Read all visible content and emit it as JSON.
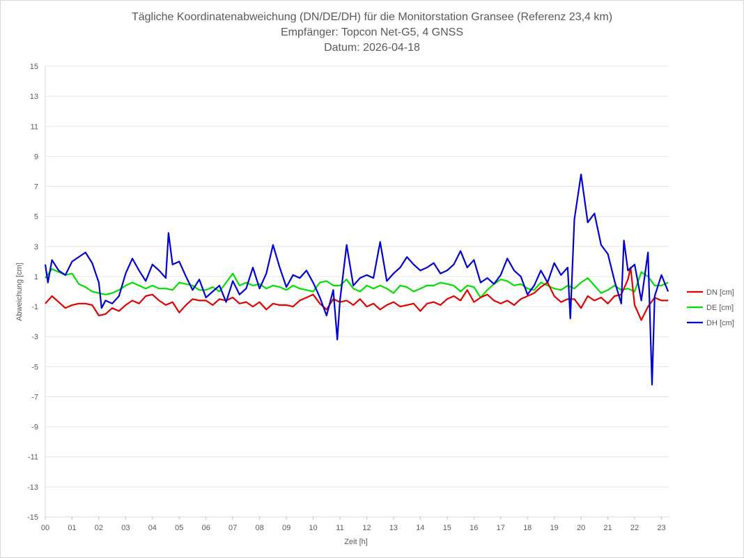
{
  "chart_data": {
    "type": "line",
    "title_lines": [
      "Tägliche Koordinatenabweichung (DN/DE/DH) für die Monitorstation Gransee (Referenz 23,4 km)",
      "Empfänger: Topcon Net-G5, 4 GNSS",
      "Datum: 2026-04-18"
    ],
    "xlabel": "Zeit [h]",
    "ylabel": "Abweichung [cm]",
    "xlim": [
      0,
      23.3
    ],
    "ylim": [
      -15,
      15
    ],
    "x_ticks": [
      "00",
      "01",
      "02",
      "03",
      "04",
      "05",
      "06",
      "07",
      "08",
      "09",
      "10",
      "11",
      "12",
      "13",
      "14",
      "15",
      "16",
      "17",
      "18",
      "19",
      "20",
      "21",
      "22",
      "23"
    ],
    "y_ticks": [
      15,
      13,
      11,
      9,
      7,
      5,
      3,
      1,
      -1,
      -3,
      -5,
      -7,
      -9,
      -11,
      -13,
      -15
    ],
    "legend_position": "right",
    "series": [
      {
        "name": "DN [cm]",
        "color": "#e00000",
        "points": [
          [
            0.0,
            -0.8
          ],
          [
            0.25,
            -0.3
          ],
          [
            0.5,
            -0.7
          ],
          [
            0.75,
            -1.1
          ],
          [
            1.0,
            -0.9
          ],
          [
            1.25,
            -0.8
          ],
          [
            1.5,
            -0.8
          ],
          [
            1.75,
            -0.9
          ],
          [
            2.0,
            -1.6
          ],
          [
            2.25,
            -1.5
          ],
          [
            2.5,
            -1.1
          ],
          [
            2.75,
            -1.3
          ],
          [
            3.0,
            -0.9
          ],
          [
            3.25,
            -0.6
          ],
          [
            3.5,
            -0.8
          ],
          [
            3.75,
            -0.3
          ],
          [
            4.0,
            -0.2
          ],
          [
            4.25,
            -0.6
          ],
          [
            4.5,
            -0.9
          ],
          [
            4.75,
            -0.7
          ],
          [
            5.0,
            -1.4
          ],
          [
            5.25,
            -0.9
          ],
          [
            5.5,
            -0.5
          ],
          [
            5.75,
            -0.6
          ],
          [
            6.0,
            -0.6
          ],
          [
            6.25,
            -0.9
          ],
          [
            6.5,
            -0.5
          ],
          [
            6.75,
            -0.6
          ],
          [
            7.0,
            -0.4
          ],
          [
            7.25,
            -0.8
          ],
          [
            7.5,
            -0.7
          ],
          [
            7.75,
            -1.0
          ],
          [
            8.0,
            -0.7
          ],
          [
            8.25,
            -1.2
          ],
          [
            8.5,
            -0.8
          ],
          [
            8.75,
            -0.9
          ],
          [
            9.0,
            -0.9
          ],
          [
            9.25,
            -1.0
          ],
          [
            9.5,
            -0.6
          ],
          [
            9.75,
            -0.4
          ],
          [
            10.0,
            -0.2
          ],
          [
            10.25,
            -0.8
          ],
          [
            10.5,
            -1.2
          ],
          [
            10.75,
            -0.5
          ],
          [
            11.0,
            -0.7
          ],
          [
            11.25,
            -0.6
          ],
          [
            11.5,
            -0.9
          ],
          [
            11.75,
            -0.5
          ],
          [
            12.0,
            -1.0
          ],
          [
            12.25,
            -0.8
          ],
          [
            12.5,
            -1.2
          ],
          [
            12.75,
            -0.9
          ],
          [
            13.0,
            -0.7
          ],
          [
            13.25,
            -1.0
          ],
          [
            13.5,
            -0.9
          ],
          [
            13.75,
            -0.8
          ],
          [
            14.0,
            -1.3
          ],
          [
            14.25,
            -0.8
          ],
          [
            14.5,
            -0.7
          ],
          [
            14.75,
            -0.9
          ],
          [
            15.0,
            -0.5
          ],
          [
            15.25,
            -0.3
          ],
          [
            15.5,
            -0.6
          ],
          [
            15.75,
            0.1
          ],
          [
            16.0,
            -0.7
          ],
          [
            16.25,
            -0.4
          ],
          [
            16.5,
            -0.2
          ],
          [
            16.75,
            -0.6
          ],
          [
            17.0,
            -0.8
          ],
          [
            17.25,
            -0.6
          ],
          [
            17.5,
            -0.9
          ],
          [
            17.75,
            -0.5
          ],
          [
            18.0,
            -0.3
          ],
          [
            18.25,
            -0.1
          ],
          [
            18.5,
            0.3
          ],
          [
            18.75,
            0.6
          ],
          [
            19.0,
            -0.3
          ],
          [
            19.25,
            -0.7
          ],
          [
            19.5,
            -0.5
          ],
          [
            19.75,
            -0.5
          ],
          [
            20.0,
            -1.1
          ],
          [
            20.25,
            -0.3
          ],
          [
            20.5,
            -0.6
          ],
          [
            20.75,
            -0.4
          ],
          [
            21.0,
            -0.8
          ],
          [
            21.25,
            -0.3
          ],
          [
            21.5,
            -0.2
          ],
          [
            21.75,
            0.8
          ],
          [
            21.85,
            1.6
          ],
          [
            22.0,
            -0.9
          ],
          [
            22.25,
            -1.9
          ],
          [
            22.5,
            -1.0
          ],
          [
            22.75,
            -0.4
          ],
          [
            23.0,
            -0.6
          ],
          [
            23.25,
            -0.6
          ]
        ]
      },
      {
        "name": "DE [cm]",
        "color": "#00e000",
        "points": [
          [
            0.0,
            0.9
          ],
          [
            0.25,
            1.5
          ],
          [
            0.5,
            1.3
          ],
          [
            0.75,
            1.1
          ],
          [
            1.0,
            1.2
          ],
          [
            1.25,
            0.5
          ],
          [
            1.5,
            0.3
          ],
          [
            1.75,
            0.0
          ],
          [
            2.0,
            -0.1
          ],
          [
            2.25,
            -0.2
          ],
          [
            2.5,
            -0.1
          ],
          [
            2.75,
            0.1
          ],
          [
            3.0,
            0.4
          ],
          [
            3.25,
            0.6
          ],
          [
            3.5,
            0.4
          ],
          [
            3.75,
            0.2
          ],
          [
            4.0,
            0.4
          ],
          [
            4.25,
            0.2
          ],
          [
            4.5,
            0.2
          ],
          [
            4.75,
            0.1
          ],
          [
            5.0,
            0.6
          ],
          [
            5.25,
            0.5
          ],
          [
            5.5,
            0.4
          ],
          [
            5.75,
            0.1
          ],
          [
            6.0,
            0.1
          ],
          [
            6.25,
            0.3
          ],
          [
            6.5,
            0.0
          ],
          [
            6.75,
            0.6
          ],
          [
            7.0,
            1.2
          ],
          [
            7.25,
            0.4
          ],
          [
            7.5,
            0.6
          ],
          [
            7.75,
            0.4
          ],
          [
            8.0,
            0.5
          ],
          [
            8.25,
            0.2
          ],
          [
            8.5,
            0.4
          ],
          [
            8.75,
            0.3
          ],
          [
            9.0,
            0.1
          ],
          [
            9.25,
            0.4
          ],
          [
            9.5,
            0.2
          ],
          [
            9.75,
            0.1
          ],
          [
            10.0,
            0.0
          ],
          [
            10.25,
            0.6
          ],
          [
            10.5,
            0.7
          ],
          [
            10.75,
            0.4
          ],
          [
            11.0,
            0.4
          ],
          [
            11.25,
            0.8
          ],
          [
            11.5,
            0.2
          ],
          [
            11.75,
            0.0
          ],
          [
            12.0,
            0.4
          ],
          [
            12.25,
            0.2
          ],
          [
            12.5,
            0.4
          ],
          [
            12.75,
            0.2
          ],
          [
            13.0,
            -0.1
          ],
          [
            13.25,
            0.4
          ],
          [
            13.5,
            0.3
          ],
          [
            13.75,
            0.0
          ],
          [
            14.0,
            0.2
          ],
          [
            14.25,
            0.4
          ],
          [
            14.5,
            0.4
          ],
          [
            14.75,
            0.6
          ],
          [
            15.0,
            0.5
          ],
          [
            15.25,
            0.4
          ],
          [
            15.5,
            0.0
          ],
          [
            15.75,
            0.4
          ],
          [
            16.0,
            0.3
          ],
          [
            16.25,
            -0.4
          ],
          [
            16.5,
            0.1
          ],
          [
            16.75,
            0.5
          ],
          [
            17.0,
            0.8
          ],
          [
            17.25,
            0.7
          ],
          [
            17.5,
            0.4
          ],
          [
            17.75,
            0.5
          ],
          [
            18.0,
            0.2
          ],
          [
            18.25,
            0.1
          ],
          [
            18.5,
            0.6
          ],
          [
            18.75,
            0.4
          ],
          [
            19.0,
            0.2
          ],
          [
            19.25,
            0.1
          ],
          [
            19.5,
            0.4
          ],
          [
            19.75,
            0.2
          ],
          [
            20.0,
            0.6
          ],
          [
            20.25,
            0.9
          ],
          [
            20.5,
            0.4
          ],
          [
            20.75,
            -0.1
          ],
          [
            21.0,
            0.1
          ],
          [
            21.25,
            0.4
          ],
          [
            21.5,
            0.1
          ],
          [
            21.75,
            0.2
          ],
          [
            22.0,
            0.0
          ],
          [
            22.25,
            1.3
          ],
          [
            22.5,
            1.0
          ],
          [
            22.75,
            0.4
          ],
          [
            23.0,
            0.4
          ],
          [
            23.25,
            0.6
          ]
        ]
      },
      {
        "name": "DH [cm]",
        "color": "#0000d0",
        "points": [
          [
            0.0,
            1.8
          ],
          [
            0.1,
            0.6
          ],
          [
            0.25,
            2.1
          ],
          [
            0.5,
            1.4
          ],
          [
            0.75,
            1.1
          ],
          [
            1.0,
            2.0
          ],
          [
            1.25,
            2.3
          ],
          [
            1.5,
            2.6
          ],
          [
            1.75,
            1.9
          ],
          [
            2.0,
            0.6
          ],
          [
            2.1,
            -1.1
          ],
          [
            2.25,
            -0.6
          ],
          [
            2.5,
            -0.8
          ],
          [
            2.75,
            -0.3
          ],
          [
            3.0,
            1.2
          ],
          [
            3.25,
            2.2
          ],
          [
            3.5,
            1.4
          ],
          [
            3.75,
            0.7
          ],
          [
            4.0,
            1.8
          ],
          [
            4.25,
            1.4
          ],
          [
            4.5,
            0.9
          ],
          [
            4.6,
            3.9
          ],
          [
            4.75,
            1.8
          ],
          [
            5.0,
            2.0
          ],
          [
            5.25,
            1.0
          ],
          [
            5.5,
            0.1
          ],
          [
            5.75,
            0.8
          ],
          [
            6.0,
            -0.4
          ],
          [
            6.25,
            0.0
          ],
          [
            6.5,
            0.4
          ],
          [
            6.75,
            -0.7
          ],
          [
            7.0,
            0.7
          ],
          [
            7.25,
            -0.2
          ],
          [
            7.5,
            0.2
          ],
          [
            7.75,
            1.6
          ],
          [
            8.0,
            0.2
          ],
          [
            8.25,
            1.2
          ],
          [
            8.5,
            3.1
          ],
          [
            8.75,
            1.6
          ],
          [
            9.0,
            0.3
          ],
          [
            9.25,
            1.1
          ],
          [
            9.5,
            0.9
          ],
          [
            9.75,
            1.4
          ],
          [
            10.0,
            0.6
          ],
          [
            10.25,
            -0.4
          ],
          [
            10.5,
            -1.6
          ],
          [
            10.75,
            0.1
          ],
          [
            10.9,
            -3.2
          ],
          [
            11.0,
            -0.6
          ],
          [
            11.25,
            3.1
          ],
          [
            11.5,
            0.4
          ],
          [
            11.75,
            0.9
          ],
          [
            12.0,
            1.1
          ],
          [
            12.25,
            0.9
          ],
          [
            12.5,
            3.3
          ],
          [
            12.75,
            0.7
          ],
          [
            13.0,
            1.2
          ],
          [
            13.25,
            1.6
          ],
          [
            13.5,
            2.3
          ],
          [
            13.75,
            1.8
          ],
          [
            14.0,
            1.4
          ],
          [
            14.25,
            1.6
          ],
          [
            14.5,
            1.9
          ],
          [
            14.75,
            1.2
          ],
          [
            15.0,
            1.4
          ],
          [
            15.25,
            1.8
          ],
          [
            15.5,
            2.7
          ],
          [
            15.75,
            1.6
          ],
          [
            16.0,
            2.1
          ],
          [
            16.25,
            0.6
          ],
          [
            16.5,
            0.9
          ],
          [
            16.75,
            0.5
          ],
          [
            17.0,
            1.1
          ],
          [
            17.25,
            2.2
          ],
          [
            17.5,
            1.4
          ],
          [
            17.75,
            1.0
          ],
          [
            18.0,
            -0.2
          ],
          [
            18.25,
            0.4
          ],
          [
            18.5,
            1.4
          ],
          [
            18.75,
            0.6
          ],
          [
            19.0,
            1.9
          ],
          [
            19.25,
            1.1
          ],
          [
            19.5,
            1.6
          ],
          [
            19.6,
            -1.8
          ],
          [
            19.75,
            4.8
          ],
          [
            20.0,
            7.8
          ],
          [
            20.25,
            4.6
          ],
          [
            20.5,
            5.2
          ],
          [
            20.75,
            3.1
          ],
          [
            21.0,
            2.5
          ],
          [
            21.25,
            0.7
          ],
          [
            21.5,
            -0.8
          ],
          [
            21.6,
            3.4
          ],
          [
            21.75,
            1.4
          ],
          [
            22.0,
            1.8
          ],
          [
            22.25,
            -0.6
          ],
          [
            22.5,
            2.6
          ],
          [
            22.65,
            -6.2
          ],
          [
            22.75,
            -0.3
          ],
          [
            23.0,
            1.1
          ],
          [
            23.25,
            0.0
          ]
        ]
      }
    ]
  }
}
